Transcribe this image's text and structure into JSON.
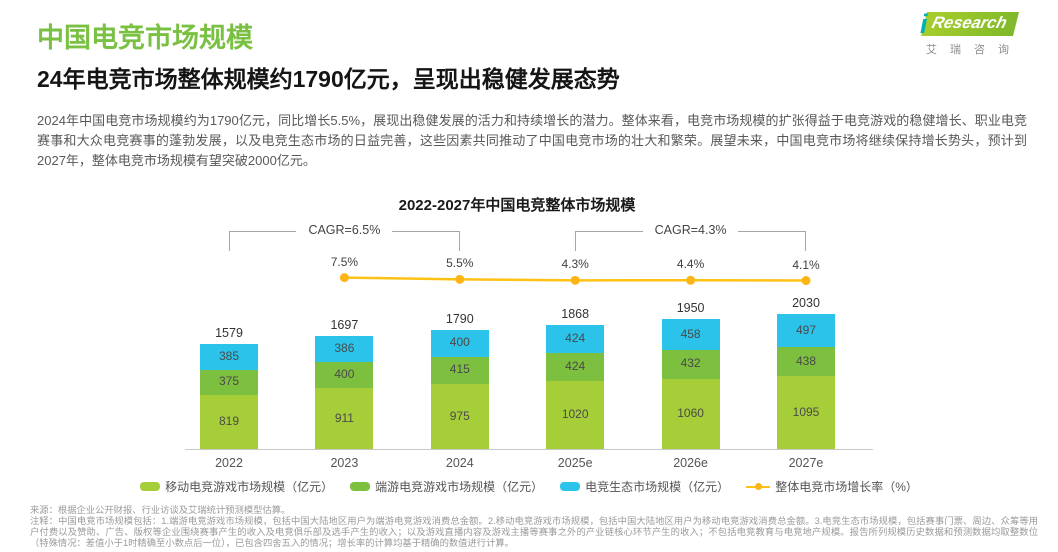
{
  "brand": {
    "logo_i": "i",
    "logo_text": "Research",
    "logo_sub": "艾瑞咨询"
  },
  "header": {
    "title": "中国电竞市场规模",
    "subtitle": "24年电竞市场整体规模约1790亿元，呈现出稳健发展态势",
    "paragraph": "2024年中国电竞市场规模约为1790亿元，同比增长5.5%，展现出稳健发展的活力和持续增长的潜力。整体来看，电竞市场规模的扩张得益于电竞游戏的稳健增长、职业电竞赛事和大众电竞赛事的蓬勃发展，以及电竞生态市场的日益完善，这些因素共同推动了中国电竞市场的壮大和繁荣。展望未来，中国电竞市场将继续保持增长势头，预计到2027年，整体电竞市场规模有望突破2000亿元。"
  },
  "chart_data": {
    "type": "bar",
    "subtype": "stacked-bars-with-growth-line",
    "title": "2022-2027年中国电竞整体市场规模",
    "categories": [
      "2022",
      "2023",
      "2024",
      "2025e",
      "2026e",
      "2027e"
    ],
    "series": [
      {
        "name": "移动电竞游戏市场规模（亿元）",
        "color": "#a6ce39",
        "values": [
          819,
          911,
          975,
          1020,
          1060,
          1095
        ]
      },
      {
        "name": "端游电竞游戏市场规模（亿元）",
        "color": "#7dbf3f",
        "values": [
          375,
          400,
          415,
          424,
          432,
          438
        ]
      },
      {
        "name": "电竞生态市场规模（亿元）",
        "color": "#2cc3ea",
        "values": [
          385,
          386,
          400,
          424,
          458,
          497
        ]
      }
    ],
    "totals": [
      1579,
      1697,
      1790,
      1868,
      1950,
      2030
    ],
    "growth_line": {
      "name": "整体电竞市场增长率（%）",
      "color": "#ffc113",
      "dot_color": "#fdb515",
      "categories": [
        "2023",
        "2024",
        "2025e",
        "2026e",
        "2027e"
      ],
      "values": [
        7.5,
        5.5,
        4.3,
        4.4,
        4.1
      ],
      "labels": [
        "7.5%",
        "5.5%",
        "4.3%",
        "4.4%",
        "4.1%"
      ]
    },
    "cagr_annotations": [
      {
        "label": "CAGR=6.5%",
        "from": "2022",
        "to": "2024"
      },
      {
        "label": "CAGR=4.3%",
        "from": "2025e",
        "to": "2027e"
      }
    ],
    "ylabel": "",
    "xlabel": "",
    "grid": false,
    "legend_position": "bottom"
  },
  "footer": {
    "source": "来源：根据企业公开财报、行业访谈及艾瑞统计预测模型估算。",
    "note": "注释：中国电竞市场规模包括：1.端游电竞游戏市场规模，包括中国大陆地区用户为端游电竞游戏消费总金额。2.移动电竞游戏市场规模，包括中国大陆地区用户为移动电竞游戏消费总金额。3.电竞生态市场规模，包括赛事门票、周边、众筹等用户付费以及赞助、广告、版权等企业围绕赛事产生的收入及电竞俱乐部及选手产生的收入；以及游戏直播内容及游戏主播等赛事之外的产业链核心环节产生的收入；不包括电竞教育与电竞地产规模。报告所列规模历史数据和预测数据均取整数位（特殊情况：差值小于1时精确至小数点后一位），已包含四舍五入的情况；增长率的计算均基于精确的数值进行计算。"
  }
}
